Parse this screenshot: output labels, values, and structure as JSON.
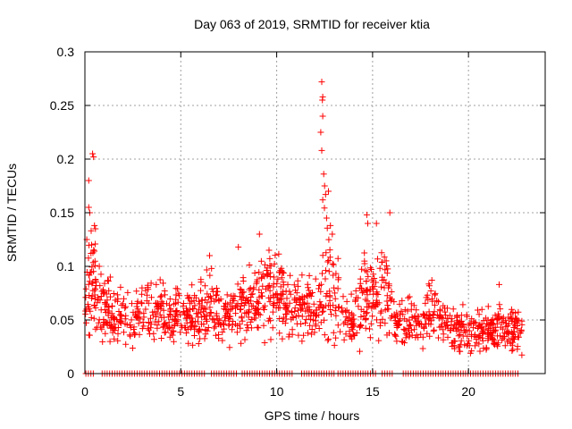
{
  "chart_data": {
    "type": "scatter",
    "title": "Day 063 of 2019, SRMTID for receiver ktia",
    "xlabel": "GPS time / hours",
    "ylabel": "SRMTID / TECUs",
    "xlim": [
      0,
      24
    ],
    "ylim": [
      0,
      0.3
    ],
    "x_ticks": [
      0,
      5,
      10,
      15,
      20
    ],
    "x_tick_labels": [
      "0",
      "5",
      "10",
      "15",
      "20"
    ],
    "y_ticks": [
      0,
      0.05,
      0.1,
      0.15,
      0.2,
      0.25,
      0.3
    ],
    "y_tick_labels": [
      "0",
      "0.05",
      "0.1",
      "0.15",
      "0.2",
      "0.25",
      "0.3"
    ],
    "grid": true,
    "marker": "+",
    "color": "#ff0000",
    "series": [
      {
        "name": "SRMTID",
        "trend": [
          [
            0.0,
            0.05,
            0.015
          ],
          [
            0.3,
            0.095,
            0.025
          ],
          [
            0.6,
            0.075,
            0.02
          ],
          [
            1.0,
            0.06,
            0.015
          ],
          [
            1.5,
            0.052,
            0.012
          ],
          [
            2.0,
            0.055,
            0.012
          ],
          [
            2.5,
            0.05,
            0.012
          ],
          [
            3.0,
            0.06,
            0.012
          ],
          [
            3.5,
            0.062,
            0.013
          ],
          [
            4.0,
            0.055,
            0.012
          ],
          [
            4.5,
            0.055,
            0.012
          ],
          [
            5.0,
            0.05,
            0.012
          ],
          [
            5.5,
            0.055,
            0.013
          ],
          [
            6.0,
            0.055,
            0.013
          ],
          [
            6.5,
            0.065,
            0.015
          ],
          [
            7.0,
            0.055,
            0.013
          ],
          [
            7.5,
            0.055,
            0.013
          ],
          [
            8.0,
            0.06,
            0.013
          ],
          [
            8.5,
            0.065,
            0.015
          ],
          [
            9.0,
            0.075,
            0.015
          ],
          [
            9.5,
            0.075,
            0.018
          ],
          [
            10.0,
            0.075,
            0.018
          ],
          [
            10.5,
            0.065,
            0.015
          ],
          [
            11.0,
            0.06,
            0.014
          ],
          [
            11.5,
            0.06,
            0.014
          ],
          [
            12.0,
            0.06,
            0.014
          ],
          [
            12.5,
            0.08,
            0.03
          ],
          [
            13.0,
            0.07,
            0.02
          ],
          [
            13.5,
            0.055,
            0.014
          ],
          [
            14.0,
            0.05,
            0.013
          ],
          [
            14.5,
            0.07,
            0.02
          ],
          [
            15.0,
            0.07,
            0.018
          ],
          [
            15.5,
            0.08,
            0.02
          ],
          [
            16.0,
            0.055,
            0.013
          ],
          [
            16.5,
            0.045,
            0.01
          ],
          [
            17.0,
            0.045,
            0.01
          ],
          [
            17.5,
            0.045,
            0.01
          ],
          [
            18.0,
            0.065,
            0.015
          ],
          [
            18.5,
            0.05,
            0.012
          ],
          [
            19.0,
            0.045,
            0.011
          ],
          [
            19.5,
            0.04,
            0.01
          ],
          [
            20.0,
            0.04,
            0.01
          ],
          [
            20.5,
            0.04,
            0.01
          ],
          [
            21.0,
            0.04,
            0.01
          ],
          [
            21.5,
            0.045,
            0.011
          ],
          [
            22.0,
            0.04,
            0.01
          ],
          [
            22.5,
            0.04,
            0.01
          ],
          [
            22.8,
            0.04,
            0.01
          ]
        ],
        "points_per_hour": 60,
        "outliers": [
          [
            0.2,
            0.18
          ],
          [
            0.4,
            0.205
          ],
          [
            0.45,
            0.202
          ],
          [
            0.2,
            0.155
          ],
          [
            0.25,
            0.15
          ],
          [
            0.5,
            0.138
          ],
          [
            0.55,
            0.135
          ],
          [
            0.1,
            0.125
          ],
          [
            0.35,
            0.12
          ],
          [
            12.35,
            0.272
          ],
          [
            12.4,
            0.258
          ],
          [
            12.38,
            0.255
          ],
          [
            12.4,
            0.24
          ],
          [
            12.3,
            0.225
          ],
          [
            12.35,
            0.208
          ],
          [
            12.45,
            0.186
          ],
          [
            12.5,
            0.175
          ],
          [
            12.55,
            0.167
          ],
          [
            12.4,
            0.162
          ],
          [
            12.6,
            0.145
          ],
          [
            12.7,
            0.17
          ],
          [
            12.8,
            0.138
          ],
          [
            12.9,
            0.13
          ],
          [
            14.7,
            0.148
          ],
          [
            14.75,
            0.14
          ],
          [
            15.2,
            0.14
          ],
          [
            15.9,
            0.15
          ],
          [
            9.1,
            0.13
          ],
          [
            9.6,
            0.115
          ],
          [
            8.0,
            0.118
          ],
          [
            6.5,
            0.11
          ],
          [
            21.6,
            0.083
          ]
        ],
        "zero_segments": [
          [
            0.05,
            0.5
          ],
          [
            0.9,
            6.3
          ],
          [
            6.6,
            7.9
          ],
          [
            8.2,
            10.9
          ],
          [
            11.3,
            13.0
          ],
          [
            13.2,
            15.2
          ],
          [
            15.5,
            16.1
          ],
          [
            16.6,
            22.7
          ]
        ],
        "zero_spacing_hours": 0.13
      }
    ]
  }
}
